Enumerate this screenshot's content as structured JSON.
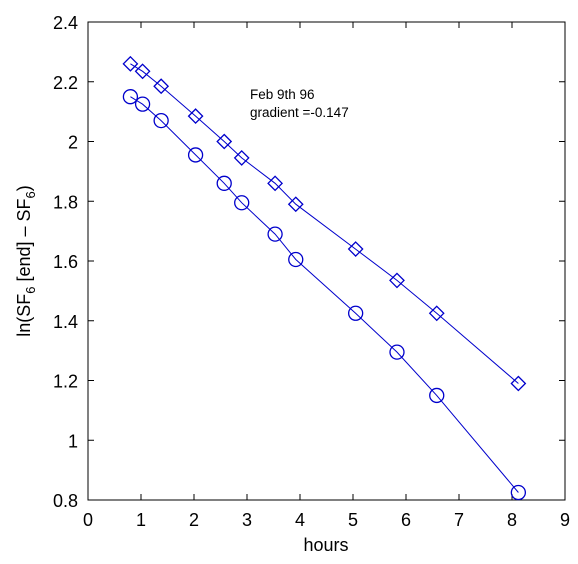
{
  "chart_data": {
    "type": "scatter",
    "xlabel": "hours",
    "ylabel": {
      "text": "ln(SF6 [end] – SF6)",
      "parts": [
        {
          "t": "ln(SF",
          "sub": false
        },
        {
          "t": "6",
          "sub": true
        },
        {
          "t": " [end] – SF",
          "sub": false
        },
        {
          "t": "6",
          "sub": true
        },
        {
          "t": ")",
          "sub": false
        }
      ]
    },
    "xlim": [
      0,
      9
    ],
    "ylim": [
      0.8,
      2.4
    ],
    "x_ticks": [
      "0",
      "1",
      "2",
      "3",
      "4",
      "5",
      "6",
      "7",
      "8",
      "9"
    ],
    "y_ticks": [
      "0.8",
      "1",
      "1.2",
      "1.4",
      "1.6",
      "1.8",
      "2",
      "2.2",
      "2.4"
    ],
    "grid": false,
    "legend": "none",
    "annotations": [
      "Feb 9th 96",
      "gradient =-0.147"
    ],
    "series": [
      {
        "marker": "diamond",
        "color": "#0000cc",
        "line": true,
        "x": [
          0.8,
          1.03,
          1.38,
          2.03,
          2.57,
          2.9,
          3.53,
          3.92,
          5.05,
          5.83,
          6.58,
          8.12
        ],
        "y": [
          2.26,
          2.235,
          2.185,
          2.085,
          2.0,
          1.945,
          1.86,
          1.79,
          1.64,
          1.535,
          1.425,
          1.19
        ]
      },
      {
        "marker": "circle",
        "color": "#0000cc",
        "line": true,
        "x": [
          0.8,
          1.03,
          1.38,
          2.03,
          2.57,
          2.9,
          3.53,
          3.92,
          5.05,
          5.83,
          6.58,
          8.12
        ],
        "y": [
          2.15,
          2.125,
          2.07,
          1.955,
          1.86,
          1.795,
          1.69,
          1.605,
          1.425,
          1.295,
          1.15,
          0.825
        ]
      }
    ]
  }
}
